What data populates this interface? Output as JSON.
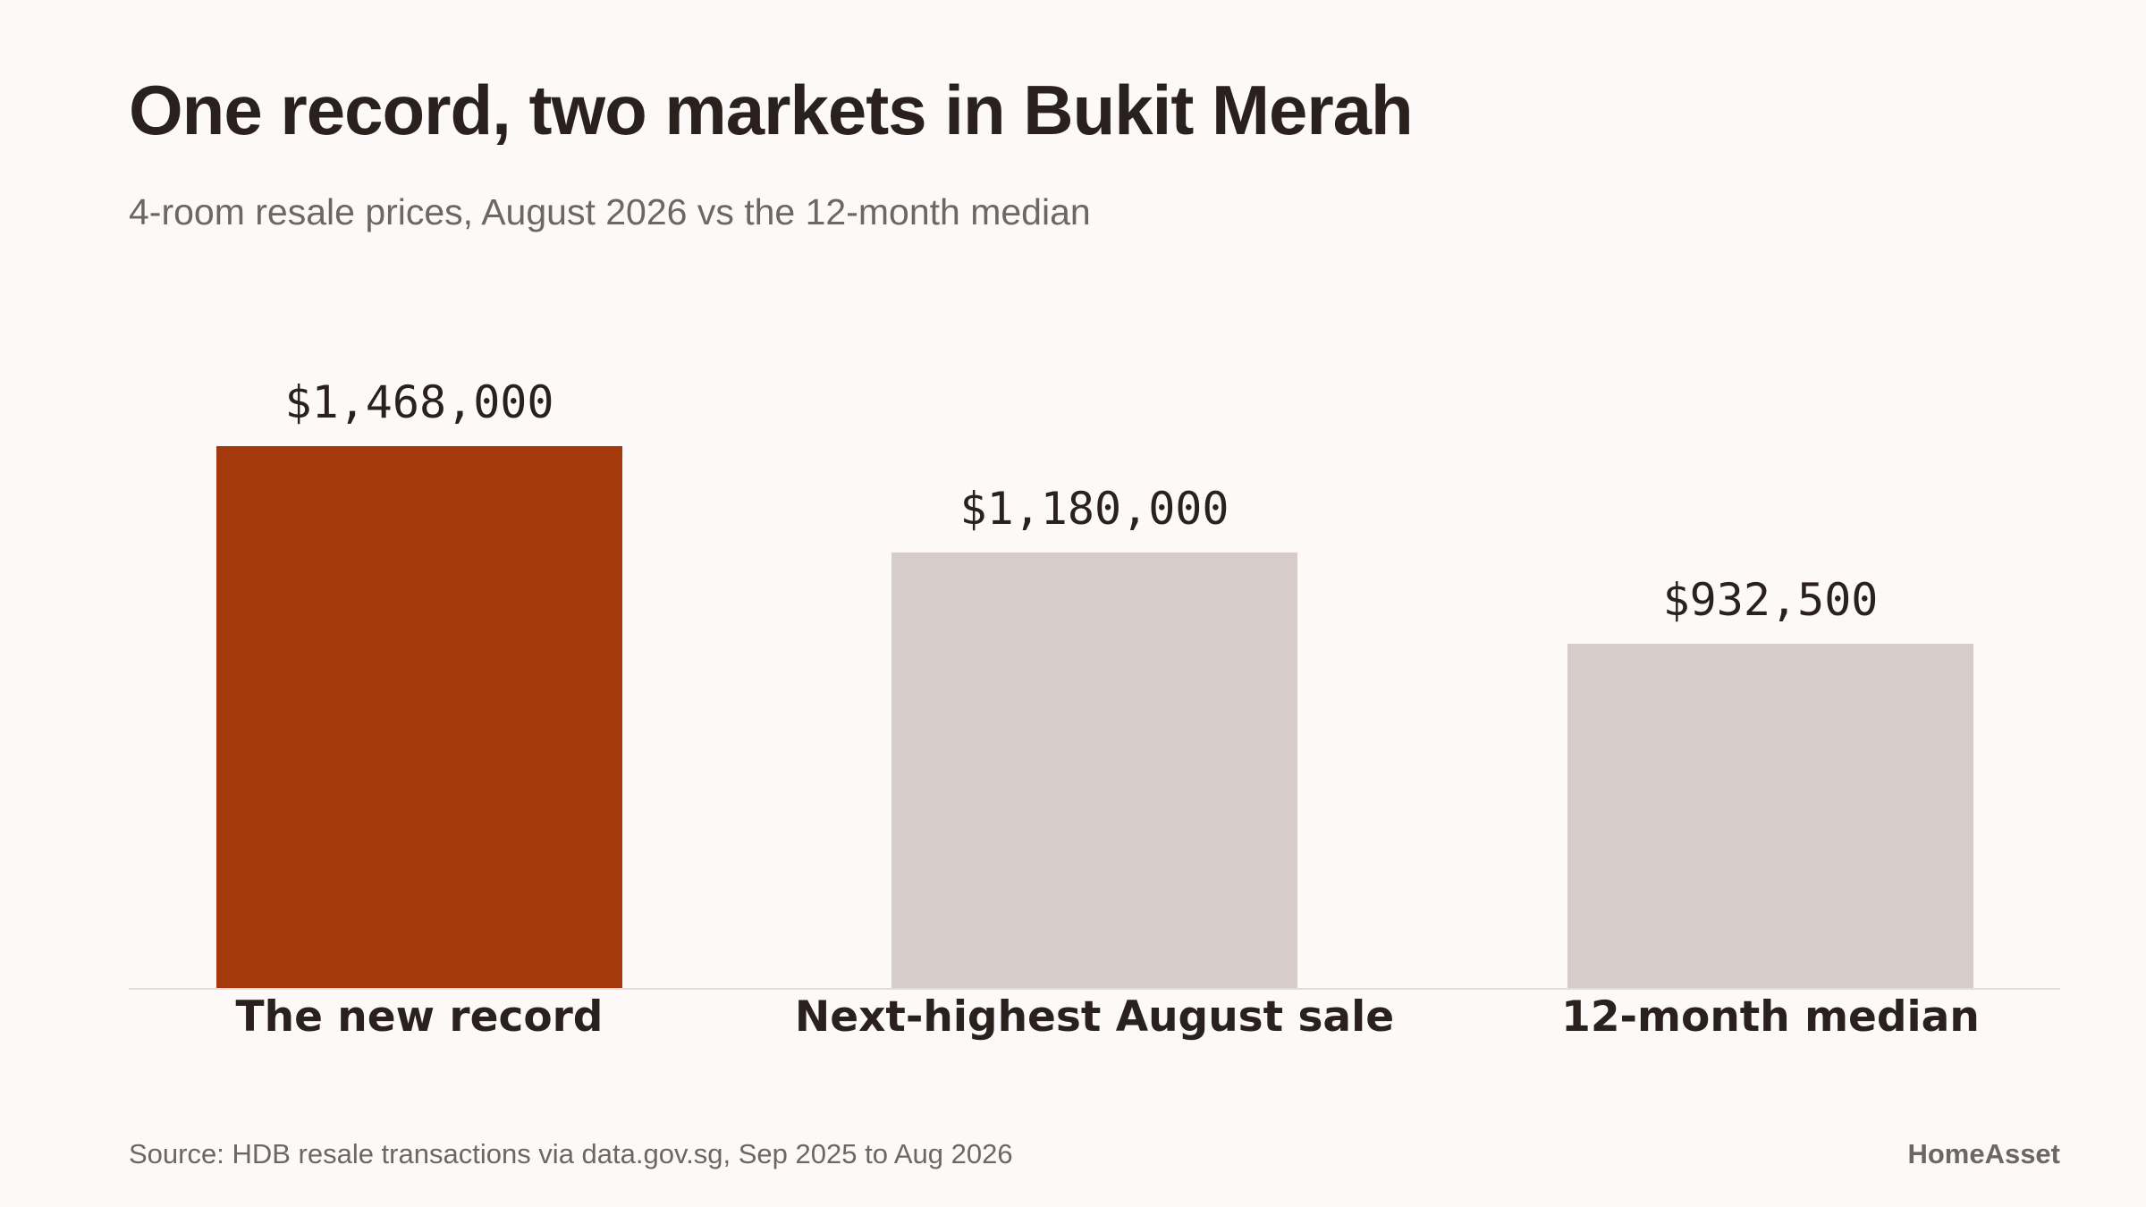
{
  "header": {
    "title": "One record, two markets in Bukit Merah",
    "subtitle": "4-room resale prices, August 2026 vs the 12-month median"
  },
  "footer": {
    "source": "Source: HDB resale transactions via data.gov.sg, Sep 2025 to Aug 2026",
    "brand": "HomeAsset"
  },
  "colors": {
    "highlight": "#a4390d",
    "muted": "#d6cdcb",
    "baseline": "#e3dcda"
  },
  "chart_data": {
    "type": "bar",
    "categories": [
      "The new record",
      "Next-highest August sale",
      "12-month median"
    ],
    "values": [
      1468000,
      1180000,
      932500
    ],
    "value_labels": [
      "$1,468,000",
      "$1,180,000",
      "$932,500"
    ],
    "highlight_index": 0,
    "ylim": [
      0,
      1468000
    ],
    "grid": false,
    "legend": "none"
  }
}
